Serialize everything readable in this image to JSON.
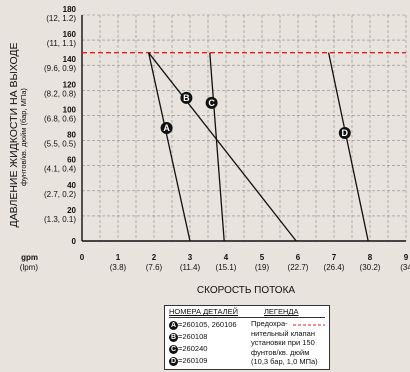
{
  "chart_data": {
    "type": "line",
    "xlabel": "СКОРОСТЬ ПОТОКА",
    "ylabel": "ДАВЛЕНИЕ ЖИДКОСТИ НА ВЫХОДЕ",
    "ylabel_sub": "фунтов/кв. дюйм (бар, МПа)",
    "x_unit_label": "gpm",
    "x_unit_label2": "(lpm)",
    "xlim": [
      0,
      9
    ],
    "ylim": [
      0,
      180
    ],
    "x_ticks": [
      {
        "v": 0,
        "main": "0",
        "sub": ""
      },
      {
        "v": 1,
        "main": "1",
        "sub": "(3.8)"
      },
      {
        "v": 2,
        "main": "2",
        "sub": "(7.6)"
      },
      {
        "v": 3,
        "main": "3",
        "sub": "(11.4)"
      },
      {
        "v": 4,
        "main": "4",
        "sub": "(15.1)"
      },
      {
        "v": 5,
        "main": "5",
        "sub": "(19)"
      },
      {
        "v": 6,
        "main": "6",
        "sub": "(22.7)"
      },
      {
        "v": 7,
        "main": "7",
        "sub": "(26.4)"
      },
      {
        "v": 8,
        "main": "8",
        "sub": "(30.2)"
      },
      {
        "v": 9,
        "main": "9",
        "sub": "(34"
      }
    ],
    "y_ticks": [
      {
        "v": 0,
        "main": "0",
        "sub": ""
      },
      {
        "v": 20,
        "main": "20",
        "sub": "(1.3, 0.1)"
      },
      {
        "v": 40,
        "main": "40",
        "sub": "(2.7, 0.2)"
      },
      {
        "v": 60,
        "main": "60",
        "sub": "(4.1, 0.4)"
      },
      {
        "v": 80,
        "main": "80",
        "sub": "(5.5, 0.5)"
      },
      {
        "v": 100,
        "main": "100",
        "sub": "(6.8, 0.6)"
      },
      {
        "v": 120,
        "main": "120",
        "sub": "(8.2, 0.8)"
      },
      {
        "v": 140,
        "main": "140",
        "sub": "(9.6, 0.9)"
      },
      {
        "v": 160,
        "main": "160",
        "sub": "(11, 1.1)"
      },
      {
        "v": 180,
        "main": "180",
        "sub": "(12, 1.2)"
      }
    ],
    "relief_line": {
      "y": 150,
      "color": "#e0202a"
    },
    "series": [
      {
        "letter": "A",
        "points": [
          [
            1.85,
            150
          ],
          [
            3.0,
            0
          ]
        ],
        "label_at": [
          2.35,
          90
        ]
      },
      {
        "letter": "B",
        "points": [
          [
            1.85,
            150
          ],
          [
            5.95,
            0
          ]
        ],
        "label_at": [
          2.9,
          114
        ]
      },
      {
        "letter": "C",
        "points": [
          [
            3.55,
            150
          ],
          [
            3.95,
            0
          ]
        ],
        "label_at": [
          3.6,
          110
        ]
      },
      {
        "letter": "D",
        "points": [
          [
            6.85,
            150
          ],
          [
            7.95,
            0
          ]
        ],
        "label_at": [
          7.3,
          86
        ]
      }
    ],
    "grid": true
  },
  "legend": {
    "col1_header": "НОМЕРА ДЕТАЛЕЙ",
    "col2_header": "ЛЕГЕНДА",
    "rows": [
      {
        "letter": "A",
        "parts": "=260105, 260106"
      },
      {
        "letter": "B",
        "parts": "=260108"
      },
      {
        "letter": "C",
        "parts": "=260240"
      },
      {
        "letter": "D",
        "parts": "=260109"
      }
    ],
    "legend_text": "Предохра- нительный клапан установки при 150 фунтов/кв. дюйм (10,3 бар, 1,0 МПа)",
    "legend_line_color": "#e0202a"
  }
}
